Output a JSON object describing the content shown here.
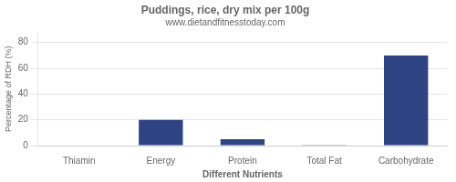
{
  "chart_data": {
    "type": "bar",
    "title": "Puddings, rice, dry mix per 100g",
    "subtitle": "www.dietandfitnesstoday.com",
    "xlabel": "Different Nutrients",
    "ylabel": "Percentage of RDH (%)",
    "categories": [
      "Thiamin",
      "Energy",
      "Protein",
      "Total Fat",
      "Carbohydrate"
    ],
    "values": [
      0.3,
      20,
      5,
      0.5,
      70
    ],
    "color": "#2e4482",
    "ylim": [
      0,
      88
    ],
    "yticks": [
      0,
      20,
      40,
      60,
      80
    ],
    "grid": true
  }
}
